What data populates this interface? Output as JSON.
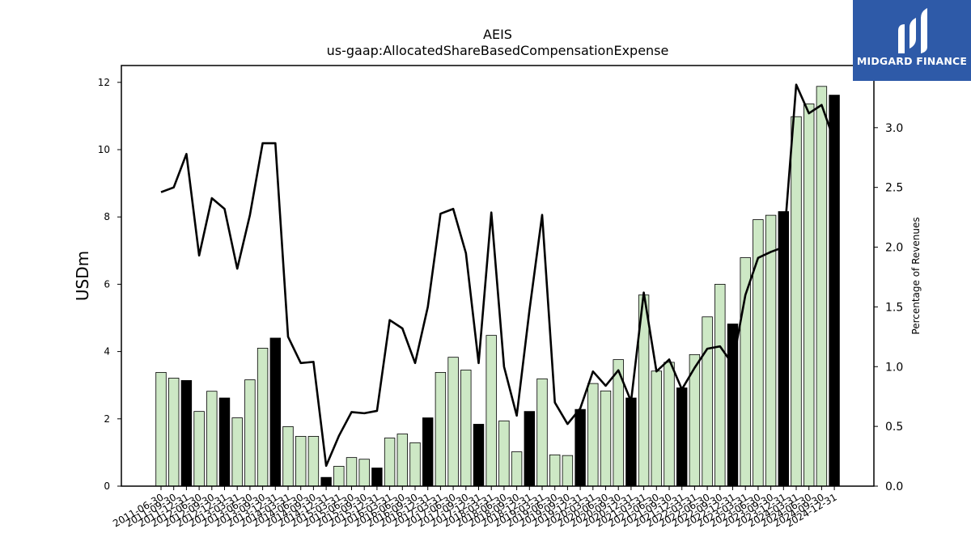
{
  "brand": {
    "name": "MIDGARD FINANCE",
    "bg_color": "#2e5aa8"
  },
  "chart_data": {
    "type": "bar",
    "title": "AEIS",
    "subtitle": "us-gaap:AllocatedShareBasedCompensationExpense",
    "ylabel": "USDm",
    "y2label": "Percentage of Revenues",
    "ylim": [
      0,
      12.5
    ],
    "y2lim": [
      0,
      3.52
    ],
    "yticks": [
      0,
      2,
      4,
      6,
      8,
      10,
      12
    ],
    "y2ticks": [
      0.0,
      0.5,
      1.0,
      1.5,
      2.0,
      2.5,
      3.0
    ],
    "y2tick_labels": [
      "0.0",
      "0.5",
      "1.0",
      "1.5",
      "2.0",
      "2.5",
      "3.0"
    ],
    "grid": false,
    "colors": {
      "quarter": "#cde8c5",
      "fiscal_year_end": "#000000",
      "line": "#000000"
    },
    "categories": [
      "2011-06-30",
      "2011-09-30",
      "2011-12-31",
      "2012-06-30",
      "2012-09-30",
      "2012-12-31",
      "2013-03-31",
      "2013-06-30",
      "2013-09-30",
      "2013-12-31",
      "2014-03-31",
      "2014-06-30",
      "2014-09-30",
      "2014-12-31",
      "2015-03-31",
      "2015-06-30",
      "2015-09-30",
      "2015-12-31",
      "2016-03-31",
      "2016-06-30",
      "2016-09-30",
      "2016-12-31",
      "2017-03-31",
      "2017-06-30",
      "2017-09-30",
      "2017-12-31",
      "2018-03-31",
      "2018-06-30",
      "2018-09-30",
      "2018-12-31",
      "2019-03-31",
      "2019-06-30",
      "2019-09-30",
      "2019-12-31",
      "2020-03-31",
      "2020-06-30",
      "2020-09-30",
      "2020-12-31",
      "2021-03-31",
      "2021-06-30",
      "2021-09-30",
      "2021-12-31",
      "2022-03-31",
      "2022-06-30",
      "2022-09-30",
      "2022-12-31",
      "2023-03-31",
      "2023-06-30",
      "2023-09-30",
      "2023-12-31",
      "2024-03-31",
      "2024-06-30",
      "2024-09-30",
      "2024-12-31"
    ],
    "series": [
      {
        "values": [
          3.38,
          3.21,
          3.14,
          2.22,
          2.82,
          2.62,
          2.03,
          3.16,
          4.1,
          4.4,
          1.77,
          1.48,
          1.48,
          0.26,
          0.59,
          0.85,
          0.8,
          0.54,
          1.43,
          1.55,
          1.29,
          2.03,
          3.38,
          3.83,
          3.45,
          1.84,
          4.48,
          1.94,
          1.02,
          2.22,
          3.19,
          0.93,
          0.91,
          2.28,
          3.05,
          2.83,
          3.76,
          2.62,
          5.68,
          3.42,
          3.68,
          2.92,
          3.91,
          5.03,
          6.0,
          4.82,
          6.79,
          7.92,
          8.05,
          8.16,
          10.98,
          11.36,
          11.88,
          11.62
        ],
        "fiscal_year_end": [
          false,
          false,
          true,
          false,
          false,
          true,
          false,
          false,
          false,
          true,
          false,
          false,
          false,
          true,
          false,
          false,
          false,
          true,
          false,
          false,
          false,
          true,
          false,
          false,
          false,
          true,
          false,
          false,
          false,
          true,
          false,
          false,
          false,
          true,
          false,
          false,
          false,
          true,
          false,
          false,
          false,
          true,
          false,
          false,
          false,
          true,
          false,
          false,
          false,
          true,
          false,
          false,
          false,
          true
        ]
      },
      {
        "axis": "right",
        "type": "line",
        "values": [
          2.46,
          2.5,
          2.78,
          1.93,
          2.41,
          2.32,
          1.82,
          2.27,
          2.87,
          2.87,
          1.25,
          1.03,
          1.04,
          0.17,
          0.42,
          0.62,
          0.61,
          0.63,
          1.39,
          1.32,
          1.03,
          1.5,
          2.28,
          2.32,
          1.95,
          1.03,
          2.29,
          1.0,
          0.59,
          1.47,
          2.27,
          0.7,
          0.52,
          0.65,
          0.96,
          0.84,
          0.97,
          0.71,
          1.62,
          0.96,
          1.06,
          0.81,
          0.99,
          1.15,
          1.17,
          1.02,
          1.6,
          1.91,
          1.96,
          2.0,
          3.36,
          3.12,
          3.19,
          2.89
        ]
      }
    ]
  }
}
